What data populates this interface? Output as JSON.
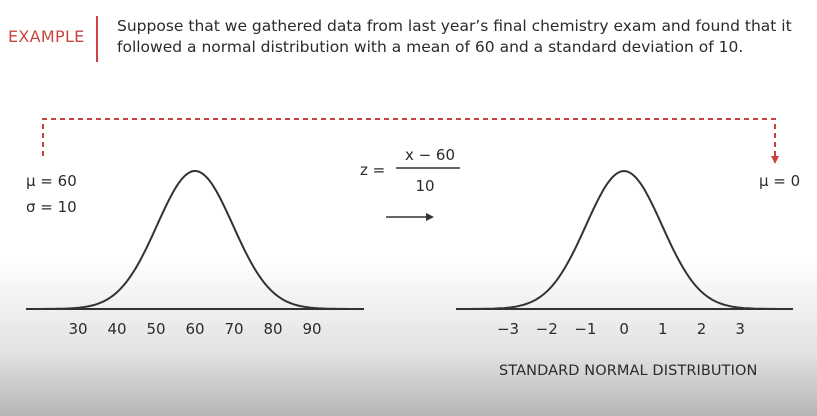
{
  "header": {
    "label": "EXAMPLE",
    "text": "Suppose that we gathered data from last year’s final chemistry exam and found that it followed a normal distribution with a mean of 60 and a standard deviation of 10."
  },
  "left_distribution": {
    "mu": "μ = 60",
    "sigma": "σ = 10",
    "tick_labels": [
      "30",
      "40",
      "50",
      "60",
      "70",
      "80",
      "90"
    ]
  },
  "formula": {
    "lhs": "z =",
    "numerator": "x − 60",
    "denominator": "10"
  },
  "right_distribution": {
    "mu": "μ = 0",
    "tick_labels": [
      "−3",
      "−2",
      "−1",
      "0",
      "1",
      "2",
      "3"
    ],
    "caption": "STANDARD NORMAL DISTRIBUTION"
  },
  "colors": {
    "accent": "#c8453f",
    "curve": "#333333",
    "text": "#2b2b2b"
  }
}
